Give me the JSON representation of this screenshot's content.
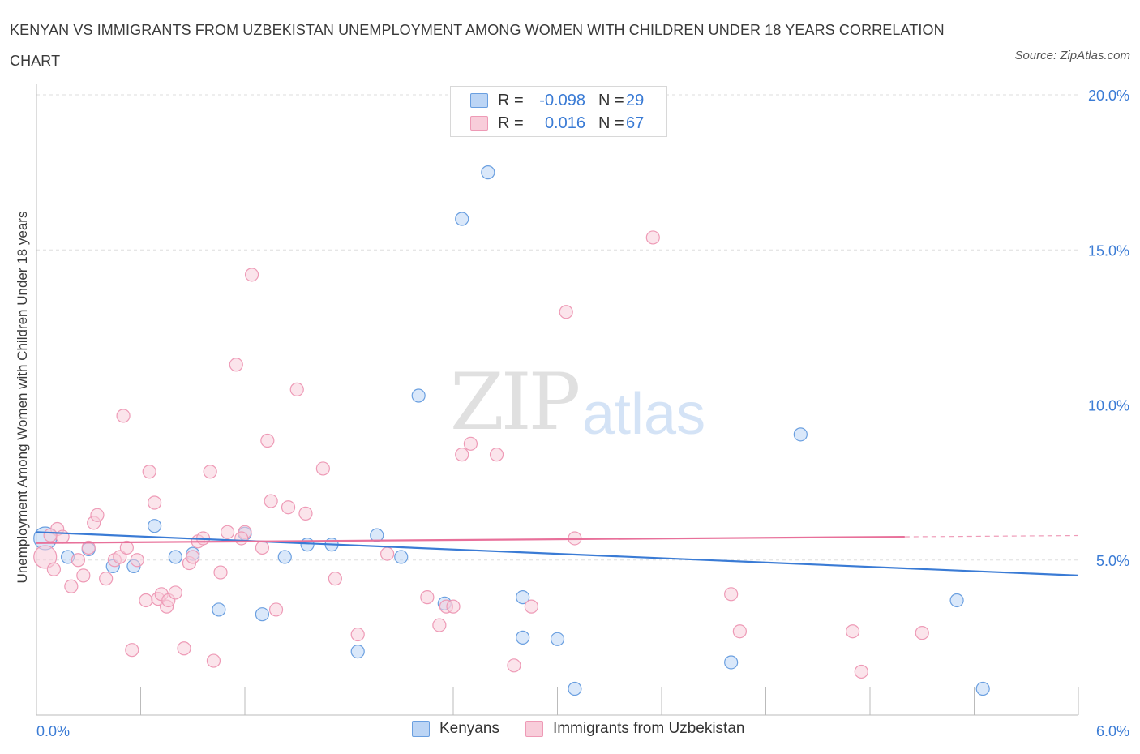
{
  "title": "KENYAN VS IMMIGRANTS FROM UZBEKISTAN UNEMPLOYMENT AMONG WOMEN WITH CHILDREN UNDER 18 YEARS CORRELATION CHART",
  "source": "Source: ZipAtlas.com",
  "watermark": {
    "zip": "ZIP",
    "atlas": "atlas"
  },
  "legend": {
    "r_label": "R =",
    "n_label": "N =",
    "rows": [
      {
        "r": "-0.098",
        "n": "29"
      },
      {
        "r": "0.016",
        "n": "67"
      }
    ]
  },
  "chart_data": {
    "type": "scatter",
    "title": "KENYAN VS IMMIGRANTS FROM UZBEKISTAN UNEMPLOYMENT AMONG WOMEN WITH CHILDREN UNDER 18 YEARS CORRELATION CHART",
    "xlabel": "",
    "ylabel": "Unemployment Among Women with Children Under 18 years",
    "xlim": [
      0,
      6
    ],
    "ylim": [
      0,
      20
    ],
    "x_tick_labels": [
      "0.0%",
      "6.0%"
    ],
    "y_tick_labels": [
      "5.0%",
      "10.0%",
      "15.0%",
      "20.0%"
    ],
    "y_ticks": [
      5,
      10,
      15,
      20
    ],
    "grid": true,
    "legend_position": "top-center",
    "series": [
      {
        "name": "Kenyans",
        "color": "#6a9fe0",
        "fill": "#bcd5f5",
        "trend": {
          "x": [
            0.0,
            6.0
          ],
          "y": [
            5.9,
            4.5
          ],
          "color": "#3a7bd5"
        },
        "points": [
          [
            0.05,
            5.7
          ],
          [
            0.18,
            5.1
          ],
          [
            0.3,
            5.35
          ],
          [
            0.44,
            4.8
          ],
          [
            0.56,
            4.8
          ],
          [
            0.68,
            6.1
          ],
          [
            0.8,
            5.1
          ],
          [
            0.9,
            5.2
          ],
          [
            1.05,
            3.4
          ],
          [
            1.2,
            5.85
          ],
          [
            1.3,
            3.25
          ],
          [
            1.43,
            5.1
          ],
          [
            1.56,
            5.5
          ],
          [
            1.7,
            5.5
          ],
          [
            1.85,
            2.05
          ],
          [
            1.96,
            5.8
          ],
          [
            2.1,
            5.1
          ],
          [
            2.2,
            10.3
          ],
          [
            2.35,
            3.6
          ],
          [
            2.45,
            16.0
          ],
          [
            2.6,
            17.5
          ],
          [
            2.8,
            2.5
          ],
          [
            2.8,
            3.8
          ],
          [
            3.0,
            2.45
          ],
          [
            3.1,
            0.85
          ],
          [
            4.0,
            1.7
          ],
          [
            4.4,
            9.05
          ],
          [
            5.3,
            3.7
          ],
          [
            5.45,
            0.85
          ]
        ]
      },
      {
        "name": "Immigrants from Uzbekistan",
        "color": "#ee9ab6",
        "fill": "#f8cdda",
        "trend": {
          "x": [
            0.0,
            5.0
          ],
          "y": [
            5.55,
            5.75
          ],
          "color": "#e8709a",
          "dashed_to": 6.0
        },
        "points": [
          [
            0.05,
            5.1
          ],
          [
            0.1,
            4.7
          ],
          [
            0.12,
            6.0
          ],
          [
            0.15,
            5.75
          ],
          [
            0.2,
            4.15
          ],
          [
            0.24,
            5.0
          ],
          [
            0.27,
            4.5
          ],
          [
            0.3,
            5.4
          ],
          [
            0.33,
            6.2
          ],
          [
            0.35,
            6.45
          ],
          [
            0.4,
            4.4
          ],
          [
            0.45,
            5.0
          ],
          [
            0.48,
            5.1
          ],
          [
            0.5,
            9.65
          ],
          [
            0.52,
            5.4
          ],
          [
            0.55,
            2.1
          ],
          [
            0.58,
            5.0
          ],
          [
            0.63,
            3.7
          ],
          [
            0.65,
            7.85
          ],
          [
            0.68,
            6.85
          ],
          [
            0.7,
            3.75
          ],
          [
            0.72,
            3.9
          ],
          [
            0.75,
            3.5
          ],
          [
            0.76,
            3.7
          ],
          [
            0.8,
            3.95
          ],
          [
            0.85,
            2.15
          ],
          [
            0.88,
            4.9
          ],
          [
            0.9,
            5.1
          ],
          [
            0.93,
            5.6
          ],
          [
            0.96,
            5.7
          ],
          [
            1.0,
            7.85
          ],
          [
            1.02,
            1.75
          ],
          [
            1.06,
            4.6
          ],
          [
            1.1,
            5.9
          ],
          [
            1.15,
            11.3
          ],
          [
            1.2,
            5.9
          ],
          [
            1.24,
            14.2
          ],
          [
            1.3,
            5.4
          ],
          [
            1.33,
            8.85
          ],
          [
            1.35,
            6.9
          ],
          [
            1.38,
            3.4
          ],
          [
            1.45,
            6.7
          ],
          [
            1.5,
            10.5
          ],
          [
            1.55,
            6.5
          ],
          [
            1.65,
            7.95
          ],
          [
            1.72,
            4.4
          ],
          [
            1.85,
            2.6
          ],
          [
            2.02,
            5.2
          ],
          [
            2.25,
            3.8
          ],
          [
            2.32,
            2.9
          ],
          [
            2.36,
            3.5
          ],
          [
            2.4,
            3.5
          ],
          [
            2.45,
            8.4
          ],
          [
            2.5,
            8.75
          ],
          [
            2.65,
            8.4
          ],
          [
            2.75,
            1.6
          ],
          [
            2.85,
            3.5
          ],
          [
            3.05,
            13.0
          ],
          [
            3.1,
            5.7
          ],
          [
            3.55,
            15.4
          ],
          [
            4.0,
            3.9
          ],
          [
            4.05,
            2.7
          ],
          [
            4.7,
            2.7
          ],
          [
            4.75,
            1.4
          ],
          [
            5.1,
            2.65
          ],
          [
            0.08,
            5.8
          ],
          [
            1.18,
            5.7
          ]
        ]
      }
    ]
  }
}
